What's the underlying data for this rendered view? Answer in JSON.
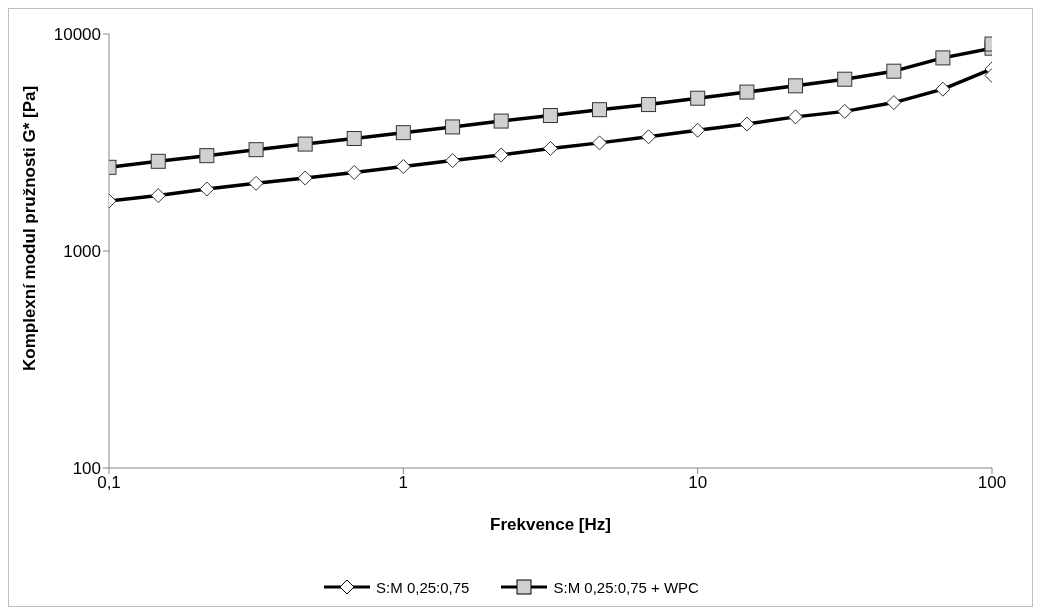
{
  "chart_data": {
    "type": "line",
    "xlabel": "Frekvence [Hz]",
    "ylabel": "Komplexní modul pružnosti G* [Pa]",
    "log": "xy",
    "xlim": [
      0.1,
      100
    ],
    "ylim": [
      100,
      10000
    ],
    "xticks": [
      {
        "value": 0.1,
        "label": "0,1"
      },
      1,
      10,
      100
    ],
    "yticks": [
      100,
      1000,
      10000
    ],
    "legend": "bottom",
    "grid": false,
    "x": [
      0.1,
      0.147,
      0.215,
      0.316,
      0.464,
      0.681,
      1,
      1.47,
      2.15,
      3.16,
      4.64,
      6.81,
      10,
      14.7,
      21.5,
      31.6,
      46.4,
      68.1,
      100,
      100
    ],
    "series": [
      {
        "name": "S:M 0,25:0,75",
        "color": "#000000",
        "marker": "diamond",
        "values": [
          1700,
          1800,
          1930,
          2050,
          2170,
          2300,
          2450,
          2610,
          2770,
          2970,
          3150,
          3360,
          3600,
          3850,
          4150,
          4400,
          4830,
          5570,
          6900,
          6440
        ]
      },
      {
        "name": "S:M 0,25:0,75 + WPC",
        "color": "#000000",
        "marker": "square",
        "values": [
          2430,
          2590,
          2750,
          2930,
          3110,
          3300,
          3510,
          3730,
          3970,
          4210,
          4480,
          4730,
          5060,
          5400,
          5770,
          6190,
          6740,
          7760,
          8600,
          8990
        ]
      }
    ]
  }
}
